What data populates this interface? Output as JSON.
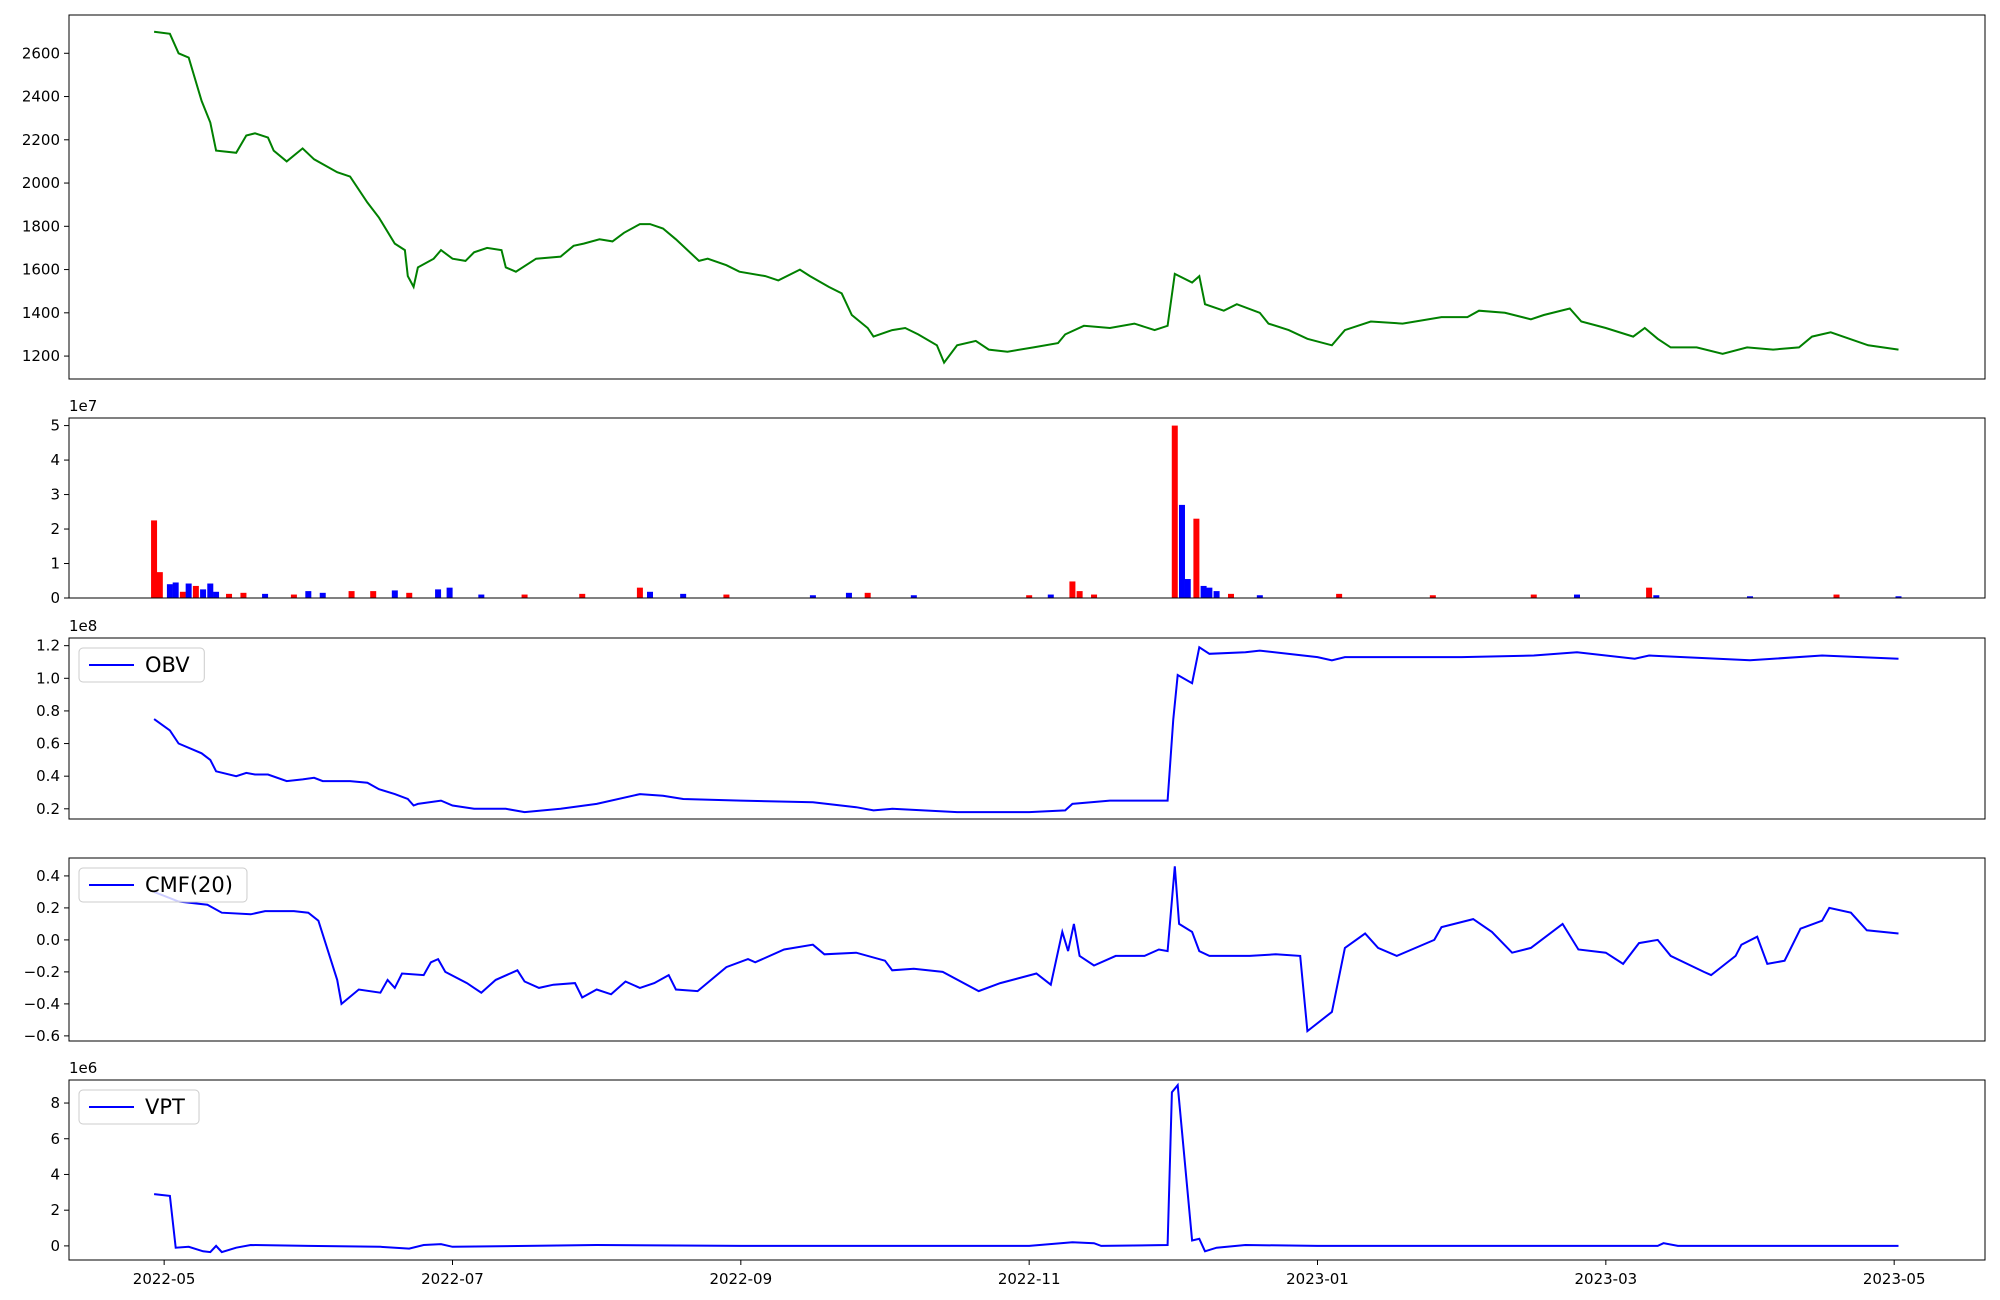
{
  "chart_data": [
    {
      "type": "line",
      "color": "green",
      "x": [
        -0.07,
        0.04,
        0.1,
        0.17,
        0.26,
        0.32,
        0.36,
        0.5,
        0.57,
        0.63,
        0.72,
        0.76,
        0.85,
        0.96,
        1.04,
        1.2,
        1.29,
        1.41,
        1.49,
        1.6,
        1.67,
        1.69,
        1.73,
        1.76,
        1.87,
        1.92,
        2.0,
        2.09,
        2.15,
        2.24,
        2.34,
        2.37,
        2.44,
        2.58,
        2.75,
        2.84,
        2.91,
        3.02,
        3.11,
        3.19,
        3.3,
        3.37,
        3.46,
        3.55,
        3.71,
        3.77,
        3.9,
        3.99,
        4.17,
        4.26,
        4.41,
        4.48,
        4.61,
        4.7,
        4.77,
        4.88,
        4.92,
        5.05,
        5.14,
        5.23,
        5.36,
        5.41,
        5.5,
        5.63,
        5.72,
        5.85,
        6.03,
        6.2,
        6.25,
        6.38,
        6.56,
        6.73,
        6.87,
        6.96,
        7.01,
        7.13,
        7.18,
        7.22,
        7.35,
        7.44,
        7.6,
        7.66,
        7.8,
        7.93,
        8.1,
        8.19,
        8.37,
        8.59,
        8.86,
        9.04,
        9.12,
        9.3,
        9.48,
        9.57,
        9.75,
        9.83,
        10.0,
        10.19,
        10.27,
        10.36,
        10.45,
        10.63,
        10.81,
        10.98,
        11.16,
        11.34,
        11.43,
        11.56,
        11.69,
        11.82,
        12.03
      ],
      "values": [
        2700,
        2690,
        2600,
        2580,
        2380,
        2280,
        2150,
        2140,
        2220,
        2230,
        2210,
        2150,
        2100,
        2160,
        2110,
        2050,
        2030,
        1910,
        1840,
        1720,
        1690,
        1570,
        1520,
        1610,
        1650,
        1690,
        1650,
        1640,
        1680,
        1700,
        1690,
        1610,
        1590,
        1650,
        1660,
        1710,
        1720,
        1740,
        1730,
        1770,
        1810,
        1810,
        1790,
        1740,
        1640,
        1650,
        1620,
        1590,
        1570,
        1550,
        1600,
        1570,
        1520,
        1490,
        1390,
        1330,
        1290,
        1320,
        1330,
        1300,
        1250,
        1170,
        1250,
        1270,
        1230,
        1220,
        1240,
        1260,
        1300,
        1340,
        1330,
        1350,
        1320,
        1340,
        1580,
        1540,
        1570,
        1440,
        1410,
        1440,
        1400,
        1350,
        1320,
        1280,
        1250,
        1320,
        1360,
        1350,
        1380,
        1380,
        1410,
        1400,
        1370,
        1390,
        1420,
        1360,
        1330,
        1290,
        1330,
        1280,
        1240,
        1240,
        1210,
        1240,
        1230,
        1240,
        1290,
        1310,
        1280,
        1250,
        1230
      ],
      "xlim": [
        -0.66,
        12.63
      ],
      "ylim": [
        1094,
        2777
      ],
      "yticks": [
        1200,
        1400,
        1600,
        1800,
        2000,
        2200,
        2400,
        2600
      ]
    },
    {
      "type": "bar",
      "offset_label": "1e7",
      "x": [
        -0.07,
        -0.03,
        0.04,
        0.08,
        0.13,
        0.17,
        0.22,
        0.27,
        0.32,
        0.36,
        0.45,
        0.55,
        0.7,
        0.9,
        1.0,
        1.1,
        1.3,
        1.45,
        1.6,
        1.7,
        1.9,
        1.98,
        2.2,
        2.5,
        2.9,
        3.3,
        3.37,
        3.6,
        3.9,
        4.5,
        4.75,
        4.88,
        5.2,
        6.0,
        6.15,
        6.3,
        6.35,
        6.45,
        7.01,
        7.06,
        7.1,
        7.16,
        7.21,
        7.25,
        7.3,
        7.4,
        7.6,
        8.15,
        8.8,
        9.5,
        9.8,
        10.3,
        10.35,
        11.0,
        11.6,
        12.03
      ],
      "values": [
        2.25,
        0.75,
        0.4,
        0.45,
        0.18,
        0.42,
        0.35,
        0.25,
        0.42,
        0.18,
        0.12,
        0.15,
        0.12,
        0.1,
        0.2,
        0.15,
        0.2,
        0.2,
        0.22,
        0.15,
        0.25,
        0.3,
        0.1,
        0.1,
        0.12,
        0.3,
        0.18,
        0.12,
        0.1,
        0.08,
        0.15,
        0.15,
        0.08,
        0.08,
        0.1,
        0.48,
        0.2,
        0.1,
        5.0,
        2.7,
        0.55,
        2.3,
        0.35,
        0.3,
        0.2,
        0.12,
        0.08,
        0.12,
        0.08,
        0.1,
        0.1,
        0.3,
        0.08,
        0.05,
        0.1,
        0.05
      ],
      "colors": [
        "red",
        "red",
        "blue",
        "blue",
        "red",
        "blue",
        "red",
        "blue",
        "blue",
        "blue",
        "red",
        "red",
        "blue",
        "red",
        "blue",
        "blue",
        "red",
        "red",
        "blue",
        "red",
        "blue",
        "blue",
        "blue",
        "red",
        "red",
        "red",
        "blue",
        "blue",
        "red",
        "blue",
        "blue",
        "red",
        "blue",
        "red",
        "blue",
        "red",
        "red",
        "red",
        "red",
        "blue",
        "blue",
        "red",
        "blue",
        "blue",
        "blue",
        "red",
        "blue",
        "red",
        "red",
        "red",
        "blue",
        "red",
        "blue",
        "blue",
        "red",
        "blue"
      ],
      "xlim": [
        -0.66,
        12.63
      ],
      "ylim": [
        0,
        5.22
      ],
      "yticks": [
        0,
        1,
        2,
        3,
        4,
        5
      ]
    },
    {
      "type": "line",
      "offset_label": "1e8",
      "legend": "upper left",
      "x": [
        -0.07,
        0.04,
        0.1,
        0.26,
        0.32,
        0.36,
        0.5,
        0.57,
        0.63,
        0.72,
        0.85,
        0.96,
        1.04,
        1.1,
        1.29,
        1.41,
        1.49,
        1.6,
        1.69,
        1.73,
        1.76,
        1.92,
        2.0,
        2.15,
        2.37,
        2.5,
        2.75,
        3.0,
        3.3,
        3.46,
        3.6,
        4.0,
        4.5,
        4.8,
        4.92,
        5.05,
        5.5,
        6.0,
        6.25,
        6.3,
        6.56,
        6.96,
        7.0,
        7.03,
        7.13,
        7.18,
        7.25,
        7.5,
        7.6,
        8.0,
        8.1,
        8.19,
        9.0,
        9.5,
        9.8,
        10.2,
        10.3,
        11.0,
        11.5,
        12.03
      ],
      "series": [
        {
          "name": "OBV",
          "color": "blue",
          "values": [
            0.75,
            0.68,
            0.6,
            0.54,
            0.5,
            0.43,
            0.4,
            0.42,
            0.41,
            0.41,
            0.37,
            0.38,
            0.39,
            0.37,
            0.37,
            0.36,
            0.32,
            0.29,
            0.26,
            0.22,
            0.23,
            0.25,
            0.22,
            0.2,
            0.2,
            0.18,
            0.2,
            0.23,
            0.29,
            0.28,
            0.26,
            0.25,
            0.24,
            0.21,
            0.19,
            0.2,
            0.18,
            0.18,
            0.19,
            0.23,
            0.25,
            0.25,
            0.75,
            1.02,
            0.97,
            1.19,
            1.15,
            1.16,
            1.17,
            1.13,
            1.11,
            1.13,
            1.13,
            1.14,
            1.16,
            1.12,
            1.14,
            1.11,
            1.14,
            1.12
          ]
        }
      ],
      "xlim": [
        -0.66,
        12.63
      ],
      "ylim": [
        0.1375,
        1.247
      ],
      "yticks": [
        0.2,
        0.4,
        0.6,
        0.8,
        {
          "value": 1,
          "label": "1.0"
        },
        1.2
      ]
    },
    {
      "type": "line",
      "legend": "upper left",
      "x": [
        -0.07,
        0.1,
        0.3,
        0.4,
        0.6,
        0.7,
        0.9,
        1.0,
        1.07,
        1.2,
        1.23,
        1.35,
        1.5,
        1.55,
        1.6,
        1.65,
        1.8,
        1.85,
        1.9,
        1.95,
        2.1,
        2.15,
        2.2,
        2.3,
        2.45,
        2.5,
        2.6,
        2.7,
        2.85,
        2.9,
        3.0,
        3.1,
        3.2,
        3.3,
        3.4,
        3.5,
        3.55,
        3.7,
        3.9,
        4.05,
        4.1,
        4.3,
        4.5,
        4.58,
        4.8,
        5.0,
        5.05,
        5.2,
        5.4,
        5.65,
        5.8,
        6.05,
        6.15,
        6.23,
        6.27,
        6.31,
        6.35,
        6.45,
        6.6,
        6.8,
        6.9,
        6.96,
        7.01,
        7.04,
        7.13,
        7.18,
        7.25,
        7.53,
        7.71,
        7.88,
        7.93,
        8.1,
        8.19,
        8.33,
        8.42,
        8.55,
        8.81,
        8.86,
        9.08,
        9.21,
        9.35,
        9.48,
        9.7,
        9.81,
        10.0,
        10.12,
        10.23,
        10.36,
        10.45,
        10.68,
        10.73,
        10.9,
        10.94,
        11.05,
        11.12,
        11.24,
        11.35,
        11.5,
        11.55,
        11.7,
        11.81,
        12.03
      ],
      "series": [
        {
          "name": "CMF(20)",
          "color": "blue",
          "values": [
            0.3,
            0.24,
            0.22,
            0.17,
            0.16,
            0.18,
            0.18,
            0.17,
            0.12,
            -0.25,
            -0.4,
            -0.31,
            -0.33,
            -0.25,
            -0.3,
            -0.21,
            -0.22,
            -0.14,
            -0.12,
            -0.2,
            -0.27,
            -0.3,
            -0.33,
            -0.25,
            -0.19,
            -0.26,
            -0.3,
            -0.28,
            -0.27,
            -0.36,
            -0.31,
            -0.34,
            -0.26,
            -0.3,
            -0.27,
            -0.22,
            -0.31,
            -0.32,
            -0.17,
            -0.12,
            -0.14,
            -0.06,
            -0.03,
            -0.09,
            -0.08,
            -0.13,
            -0.19,
            -0.18,
            -0.2,
            -0.32,
            -0.27,
            -0.21,
            -0.28,
            0.05,
            -0.07,
            0.1,
            -0.1,
            -0.16,
            -0.1,
            -0.1,
            -0.06,
            -0.07,
            0.46,
            0.1,
            0.05,
            -0.07,
            -0.1,
            -0.1,
            -0.09,
            -0.1,
            -0.57,
            -0.45,
            -0.05,
            0.04,
            -0.05,
            -0.1,
            0.0,
            0.08,
            0.13,
            0.05,
            -0.08,
            -0.05,
            0.1,
            -0.06,
            -0.08,
            -0.15,
            -0.02,
            0.0,
            -0.1,
            -0.2,
            -0.22,
            -0.1,
            -0.03,
            0.02,
            -0.15,
            -0.13,
            0.07,
            0.12,
            0.2,
            0.17,
            0.06,
            0.04
          ]
        }
      ],
      "xlim": [
        -0.66,
        12.63
      ],
      "ylim": [
        -0.632,
        0.512
      ],
      "yticks": [
        {
          "value": -0.6,
          "label": "−0.6"
        },
        {
          "value": -0.4,
          "label": "−0.4"
        },
        {
          "value": -0.2,
          "label": "−0.2"
        },
        {
          "value": 0,
          "label": "0.0"
        },
        0.2,
        0.4
      ]
    },
    {
      "type": "line",
      "offset_label": "1e6",
      "legend": "upper left",
      "x": [
        -0.07,
        0.04,
        0.08,
        0.17,
        0.27,
        0.32,
        0.36,
        0.4,
        0.5,
        0.6,
        1.0,
        1.5,
        1.7,
        1.8,
        1.92,
        2.0,
        3.0,
        4.0,
        5.0,
        6.0,
        6.3,
        6.45,
        6.5,
        6.96,
        6.99,
        7.03,
        7.13,
        7.18,
        7.22,
        7.3,
        7.5,
        8.0,
        9.0,
        10.36,
        10.4,
        10.5,
        12.03
      ],
      "series": [
        {
          "name": "VPT",
          "color": "blue",
          "values": [
            2.9,
            2.8,
            -0.1,
            -0.05,
            -0.3,
            -0.35,
            0.0,
            -0.35,
            -0.1,
            0.05,
            0.0,
            -0.05,
            -0.15,
            0.05,
            0.1,
            -0.05,
            0.05,
            0.0,
            0.0,
            0.0,
            0.2,
            0.15,
            0.0,
            0.05,
            8.6,
            9.0,
            0.3,
            0.4,
            -0.3,
            -0.1,
            0.05,
            0.0,
            0.0,
            0.0,
            0.15,
            0.0,
            0.0
          ]
        }
      ],
      "xlim": [
        -0.66,
        12.63
      ],
      "ylim": [
        -0.79,
        9.29
      ],
      "yticks": [
        0,
        2,
        4,
        6,
        8
      ],
      "xticks": [
        {
          "value": 0,
          "label": "2022-05"
        },
        {
          "value": 2,
          "label": "2022-07"
        },
        {
          "value": 4,
          "label": "2022-09"
        },
        {
          "value": 6,
          "label": "2022-11"
        },
        {
          "value": 8,
          "label": "2023-01"
        },
        {
          "value": 10,
          "label": "2023-03"
        },
        {
          "value": 12,
          "label": "2023-05"
        }
      ]
    }
  ]
}
